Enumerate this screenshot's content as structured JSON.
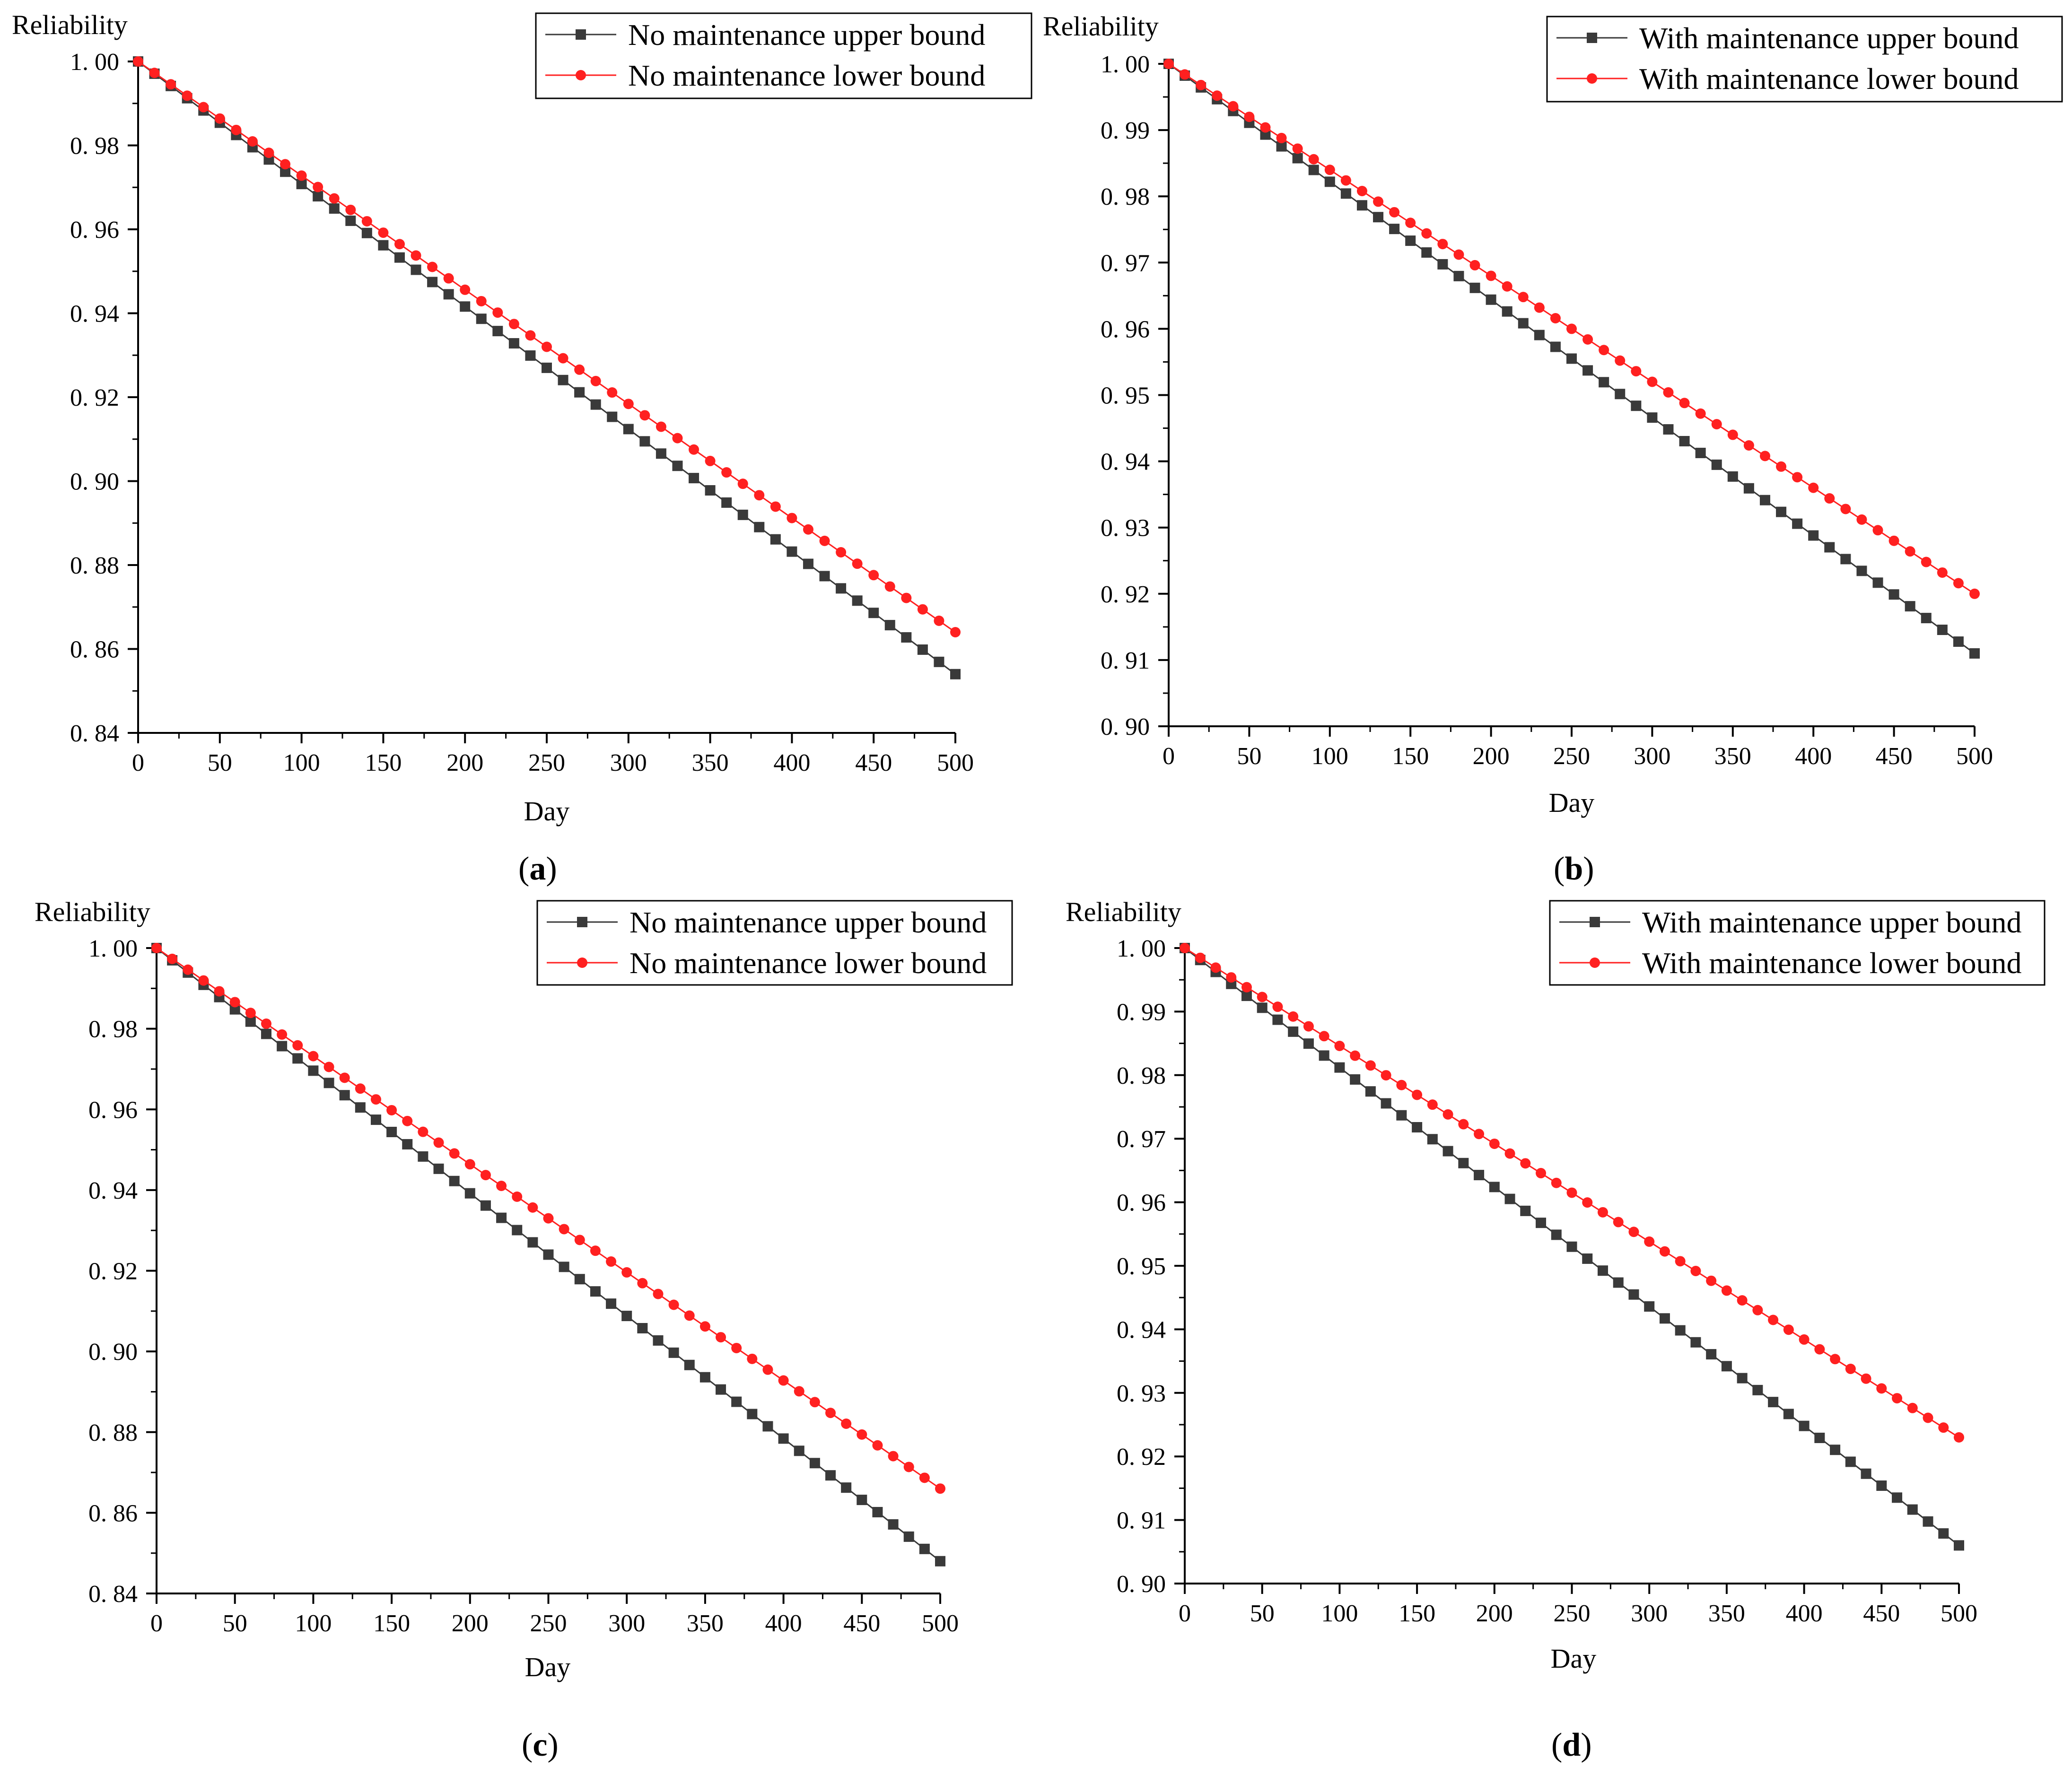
{
  "figure": {
    "panels": [
      {
        "id": "a",
        "caption_letter": "a",
        "chart_data": {
          "type": "line",
          "xlabel": "Day",
          "ylabel": "Reliability",
          "xlim": [
            0,
            500
          ],
          "ylim": [
            0.84,
            1.0
          ],
          "xticks": [
            0,
            50,
            100,
            150,
            200,
            250,
            300,
            350,
            400,
            450,
            500
          ],
          "xtick_labels": [
            "0",
            "50",
            "100",
            "150",
            "200",
            "250",
            "300",
            "350",
            "400",
            "450",
            "500"
          ],
          "yticks": [
            0.84,
            0.86,
            0.88,
            0.9,
            0.92,
            0.94,
            0.96,
            0.98,
            1.0
          ],
          "ytick_labels": [
            "0. 84",
            "0. 86",
            "0. 88",
            "0. 90",
            "0. 92",
            "0. 94",
            "0. 96",
            "0. 98",
            "1. 00"
          ],
          "x_step": 10,
          "legend_position": "top-right",
          "series": [
            {
              "name": "No maintenance upper bound",
              "marker": "square",
              "color": "#3a3a3a",
              "start": 1.0,
              "end": 0.854
            },
            {
              "name": "No maintenance lower bound",
              "marker": "circle",
              "color": "#ff2020",
              "start": 1.0,
              "end": 0.864
            }
          ]
        }
      },
      {
        "id": "b",
        "caption_letter": "b",
        "chart_data": {
          "type": "line",
          "xlabel": "Day",
          "ylabel": "Reliability",
          "xlim": [
            0,
            500
          ],
          "ylim": [
            0.9,
            1.0
          ],
          "xticks": [
            0,
            50,
            100,
            150,
            200,
            250,
            300,
            350,
            400,
            450,
            500
          ],
          "xtick_labels": [
            "0",
            "50",
            "100",
            "150",
            "200",
            "250",
            "300",
            "350",
            "400",
            "450",
            "500"
          ],
          "yticks": [
            0.9,
            0.91,
            0.92,
            0.93,
            0.94,
            0.95,
            0.96,
            0.97,
            0.98,
            0.99,
            1.0
          ],
          "ytick_labels": [
            "0. 90",
            "0. 91",
            "0. 92",
            "0. 93",
            "0. 94",
            "0. 95",
            "0. 96",
            "0. 97",
            "0. 98",
            "0. 99",
            "1. 00"
          ],
          "x_step": 10,
          "legend_position": "top-right",
          "series": [
            {
              "name": "With maintenance upper bound",
              "marker": "square",
              "color": "#3a3a3a",
              "start": 1.0,
              "end": 0.911
            },
            {
              "name": "With maintenance lower bound",
              "marker": "circle",
              "color": "#ff2020",
              "start": 1.0,
              "end": 0.92
            }
          ]
        }
      },
      {
        "id": "c",
        "caption_letter": "c",
        "chart_data": {
          "type": "line",
          "xlabel": "Day",
          "ylabel": "Reliability",
          "xlim": [
            0,
            500
          ],
          "ylim": [
            0.84,
            1.0
          ],
          "xticks": [
            0,
            50,
            100,
            150,
            200,
            250,
            300,
            350,
            400,
            450,
            500
          ],
          "xtick_labels": [
            "0",
            "50",
            "100",
            "150",
            "200",
            "250",
            "300",
            "350",
            "400",
            "450",
            "500"
          ],
          "yticks": [
            0.84,
            0.86,
            0.88,
            0.9,
            0.92,
            0.94,
            0.96,
            0.98,
            1.0
          ],
          "ytick_labels": [
            "0. 84",
            "0. 86",
            "0. 88",
            "0. 90",
            "0. 92",
            "0. 94",
            "0. 96",
            "0. 98",
            "1. 00"
          ],
          "x_step": 10,
          "legend_position": "top-right",
          "series": [
            {
              "name": "No maintenance upper bound",
              "marker": "square",
              "color": "#3a3a3a",
              "start": 1.0,
              "end": 0.848
            },
            {
              "name": "No maintenance lower bound",
              "marker": "circle",
              "color": "#ff2020",
              "start": 1.0,
              "end": 0.866
            }
          ]
        }
      },
      {
        "id": "d",
        "caption_letter": "d",
        "chart_data": {
          "type": "line",
          "xlabel": "Day",
          "ylabel": "Reliability",
          "xlim": [
            0,
            500
          ],
          "ylim": [
            0.9,
            1.0
          ],
          "xticks": [
            0,
            50,
            100,
            150,
            200,
            250,
            300,
            350,
            400,
            450,
            500
          ],
          "xtick_labels": [
            "0",
            "50",
            "100",
            "150",
            "200",
            "250",
            "300",
            "350",
            "400",
            "450",
            "500"
          ],
          "yticks": [
            0.9,
            0.91,
            0.92,
            0.93,
            0.94,
            0.95,
            0.96,
            0.97,
            0.98,
            0.99,
            1.0
          ],
          "ytick_labels": [
            "0. 90",
            "0. 91",
            "0. 92",
            "0. 93",
            "0. 94",
            "0. 95",
            "0. 96",
            "0. 97",
            "0. 98",
            "0. 99",
            "1. 00"
          ],
          "x_step": 10,
          "legend_position": "top-right",
          "series": [
            {
              "name": "With maintenance upper bound",
              "marker": "square",
              "color": "#3a3a3a",
              "start": 1.0,
              "end": 0.906
            },
            {
              "name": "With maintenance lower bound",
              "marker": "circle",
              "color": "#ff2020",
              "start": 1.0,
              "end": 0.923
            }
          ]
        }
      }
    ]
  }
}
